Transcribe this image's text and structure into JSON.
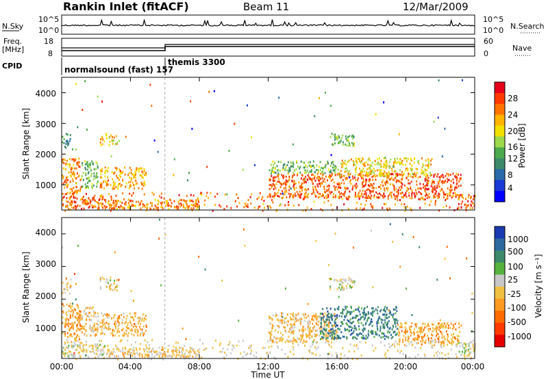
{
  "header": {
    "station": "Rankin Inlet (fitACF)",
    "beam": "Beam 11",
    "date": "12/Mar/2009"
  },
  "top_panels": {
    "nsky": {
      "label": "N.Sky",
      "ticks_left": [
        "10^5",
        "10^0"
      ],
      "ticks_right": [
        "10^5",
        "10^0"
      ],
      "right_label": "N.Search"
    },
    "freq": {
      "label_line1": "Freq.",
      "label_line2": "[MHz]",
      "ticks_left": [
        "18",
        "8"
      ],
      "ticks_right": [
        "60",
        "0"
      ],
      "right_label": "Nave"
    },
    "cpid": {
      "label": "CPID",
      "segments": [
        {
          "name": "normalsound (fast) 157",
          "start_hour": 0,
          "end_hour": 6
        },
        {
          "name": "themis 3300",
          "start_hour": 6,
          "end_hour": 24
        }
      ]
    }
  },
  "x_axis": {
    "label": "Time UT",
    "tick_labels": [
      "00:00",
      "04:00",
      "08:00",
      "12:00",
      "16:00",
      "20:00",
      "00:00"
    ]
  },
  "colorbars": {
    "power": {
      "label": "Power [dB]",
      "tick_labels": [
        "28",
        "24",
        "20",
        "16",
        "12",
        "8",
        "4"
      ],
      "colors": [
        "#e6001a",
        "#ff3a00",
        "#ff7400",
        "#ffb400",
        "#f2e000",
        "#9bd84a",
        "#4caa4c",
        "#3c8a6a",
        "#2a6aa8",
        "#1a3ad8",
        "#0000ff"
      ]
    },
    "velocity": {
      "label": "Velocity [m s⁻¹]",
      "tick_labels": [
        "1000",
        "500",
        "100",
        "25",
        "-25",
        "-100",
        "-500",
        "-1000"
      ],
      "colors": [
        "#1a3ab0",
        "#2c6aa0",
        "#3c8a6a",
        "#55b23c",
        "#c8c8c8",
        "#f0c040",
        "#ff9a20",
        "#ff6a00",
        "#ff3a00",
        "#e60000"
      ]
    }
  },
  "chart_data": [
    {
      "type": "heatmap",
      "title": "Power",
      "xlabel": "",
      "ylabel": "Slant Range [km]",
      "x_unit": "hours UT",
      "xlim": [
        0,
        24
      ],
      "ylim": [
        180,
        4500
      ],
      "ytick_labels": [
        "1000",
        "2000",
        "3000",
        "4000"
      ],
      "color_label": "Power [dB]",
      "clim": [
        0,
        32
      ],
      "regions": [
        {
          "t0": 0.0,
          "t1": 1.1,
          "r0": 700,
          "r1": 1900,
          "value": 24
        },
        {
          "t0": 0.0,
          "t1": 0.5,
          "r0": 2200,
          "r1": 2700,
          "value": 10
        },
        {
          "t0": 1.1,
          "t1": 2.1,
          "r0": 900,
          "r1": 1800,
          "value": 14
        },
        {
          "t0": 2.2,
          "t1": 4.9,
          "r0": 900,
          "r1": 1600,
          "value": 22
        },
        {
          "t0": 2.2,
          "t1": 3.2,
          "r0": 2300,
          "r1": 2700,
          "value": 20
        },
        {
          "t0": 0.0,
          "t1": 2.5,
          "r0": 250,
          "r1": 650,
          "value": 26
        },
        {
          "t0": 2.5,
          "t1": 8.0,
          "r0": 250,
          "r1": 550,
          "value": 24
        },
        {
          "t0": 12.0,
          "t1": 23.2,
          "r0": 600,
          "r1": 1400,
          "value": 26
        },
        {
          "t0": 12.0,
          "t1": 16.0,
          "r0": 1400,
          "r1": 1800,
          "value": 14
        },
        {
          "t0": 16.0,
          "t1": 21.5,
          "r0": 1300,
          "r1": 1900,
          "value": 20
        },
        {
          "t0": 15.5,
          "t1": 17.0,
          "r0": 2300,
          "r1": 2700,
          "value": 14
        },
        {
          "t0": 23.0,
          "t1": 24.0,
          "r0": 250,
          "r1": 700,
          "value": 26
        }
      ]
    },
    {
      "type": "heatmap",
      "title": "Velocity",
      "xlabel": "Time UT",
      "ylabel": "Slant Range [km]",
      "x_unit": "hours UT",
      "xlim": [
        0,
        24
      ],
      "ylim": [
        180,
        4500
      ],
      "ytick_labels": [
        "1000",
        "2000",
        "3000",
        "4000"
      ],
      "color_label": "Velocity [m s⁻¹]",
      "clim": [
        -1200,
        1200
      ],
      "regions": [
        {
          "t0": 0.0,
          "t1": 1.1,
          "r0": 700,
          "r1": 1900,
          "value": -300
        },
        {
          "t0": 0.0,
          "t1": 0.5,
          "r0": 2200,
          "r1": 2700,
          "value": -60
        },
        {
          "t0": 1.1,
          "t1": 2.1,
          "r0": 900,
          "r1": 1800,
          "value": -150
        },
        {
          "t0": 2.2,
          "t1": 4.9,
          "r0": 900,
          "r1": 1600,
          "value": -250
        },
        {
          "t0": 2.2,
          "t1": 3.2,
          "r0": 2300,
          "r1": 2700,
          "value": 0
        },
        {
          "t0": 0.0,
          "t1": 2.5,
          "r0": 250,
          "r1": 650,
          "value": 50
        },
        {
          "t0": 2.5,
          "t1": 8.0,
          "r0": 250,
          "r1": 550,
          "value": -120
        },
        {
          "t0": 12.0,
          "t1": 16.0,
          "r0": 700,
          "r1": 1600,
          "value": -180
        },
        {
          "t0": 15.0,
          "t1": 19.5,
          "r0": 800,
          "r1": 1800,
          "value": 700
        },
        {
          "t0": 19.5,
          "t1": 23.2,
          "r0": 600,
          "r1": 1300,
          "value": -300
        },
        {
          "t0": 15.5,
          "t1": 17.0,
          "r0": 2300,
          "r1": 2700,
          "value": 60
        },
        {
          "t0": 23.0,
          "t1": 24.0,
          "r0": 250,
          "r1": 700,
          "value": 150
        }
      ]
    }
  ]
}
